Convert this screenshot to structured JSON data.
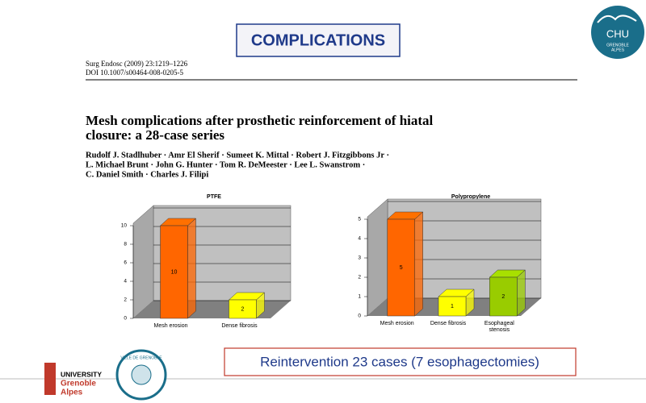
{
  "slide": {
    "title": "COMPLICATIONS",
    "footer_box": "Reintervention 23 cases (7 esophagectomies)"
  },
  "logo_top": {
    "name": "CHU",
    "sub_1": "GRENOBLE",
    "sub_2": "ALPES"
  },
  "paper": {
    "citation": "Surg Endosc (2009) 23:1219–1226",
    "doi": "DOI 10.1007/s00464-008-0205-5",
    "title_lines": [
      "Mesh complications after prosthetic reinforcement of hiatal",
      "closure: a 28-case series"
    ],
    "author_lines": [
      "Rudolf J. Stadlhuber · Amr El Sherif · Sumeet K. Mittal · Robert J. Fitzgibbons Jr ·",
      "L. Michael Brunt · John G. Hunter · Tom R. DeMeester · Lee L. Swanstrom ·",
      "C. Daniel Smith · Charles J. Filipi"
    ]
  },
  "logos_bottom": {
    "university": [
      "UNIVERSITY",
      "Grenoble",
      "Alpes"
    ],
    "city": "VILLE DE GRENOBLE"
  },
  "chart_data": [
    {
      "type": "bar",
      "title": "PTFE",
      "categories": [
        "Mesh erosion",
        "Dense fibrosis"
      ],
      "values": [
        10,
        2
      ],
      "colors": [
        "#ff6600",
        "#ffff00"
      ],
      "ylim": [
        0,
        10
      ],
      "yticks": [
        0,
        2,
        4,
        6,
        8,
        10
      ],
      "grid": true
    },
    {
      "type": "bar",
      "title": "Polypropylene",
      "categories": [
        "Mesh erosion",
        "Dense fibrosis",
        "Esophageal stenosis"
      ],
      "values": [
        5,
        1,
        2
      ],
      "colors": [
        "#ff6600",
        "#ffff00",
        "#99cc00"
      ],
      "ylim": [
        0,
        5
      ],
      "yticks": [
        0,
        1,
        2,
        3,
        4,
        5
      ],
      "grid": true
    }
  ]
}
